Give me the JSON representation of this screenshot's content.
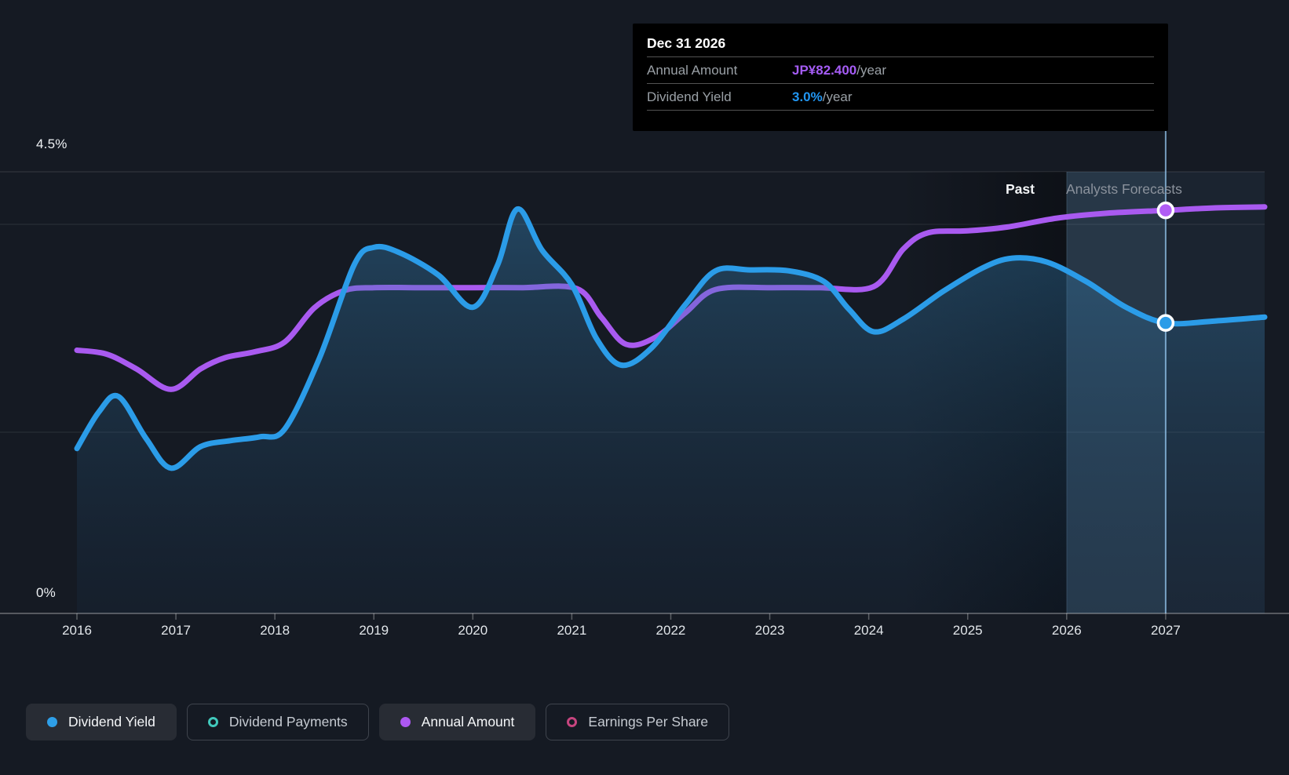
{
  "page": {
    "background": "#151a23"
  },
  "tooltip": {
    "title": "Dec 31 2026",
    "rows": [
      {
        "label": "Annual Amount",
        "value": "JP¥82.400",
        "suffix": "/year",
        "value_color": "#a55cf5"
      },
      {
        "label": "Dividend Yield",
        "value": "3.0%",
        "suffix": "/year",
        "value_color": "#2196f3"
      }
    ]
  },
  "labels": {
    "past": "Past",
    "analysts_forecasts": "Analysts Forecasts",
    "y_top": "4.5%",
    "y_bottom": "0%"
  },
  "axis": {
    "x_labels": [
      "2016",
      "2017",
      "2018",
      "2019",
      "2020",
      "2021",
      "2022",
      "2023",
      "2024",
      "2025",
      "2026",
      "2027"
    ]
  },
  "legend": {
    "items": [
      {
        "label": "Dividend Yield",
        "color": "#2e9fe8",
        "style": "filled",
        "active": true
      },
      {
        "label": "Dividend Payments",
        "color": "#41c9bc",
        "style": "ring",
        "active": false
      },
      {
        "label": "Annual Amount",
        "color": "#ad58f2",
        "style": "filled",
        "active": true
      },
      {
        "label": "Earnings Per Share",
        "color": "#c7457f",
        "style": "ring",
        "active": false
      }
    ]
  },
  "chart_data": {
    "type": "line",
    "title": "Dividend history and forecast",
    "x_ticks": [
      2016,
      2017,
      2018,
      2019,
      2020,
      2021,
      2022,
      2023,
      2024,
      2025,
      2026,
      2027
    ],
    "x_range": [
      2016,
      2028
    ],
    "forecast_start": 2026,
    "hover_x": 2027,
    "grid": true,
    "y_axis_yield": {
      "min": 0,
      "max": 4.5,
      "top_label": "4.5%",
      "bottom_label": "0%",
      "unit": "%"
    },
    "y_axis_amount": {
      "unit": "JP¥/year",
      "note": "hidden scale, calibrated to 82.400 at hover point"
    },
    "highlight": {
      "date": "Dec 31 2026",
      "annual_amount": "JP¥82.400/year",
      "dividend_yield": "3.0%/year"
    },
    "series": [
      {
        "name": "Dividend Yield",
        "unit": "%",
        "color": "#2b9ce8",
        "area": true,
        "points": [
          [
            2016.0,
            1.68
          ],
          [
            2016.22,
            2.05
          ],
          [
            2016.42,
            2.21
          ],
          [
            2016.7,
            1.78
          ],
          [
            2016.95,
            1.48
          ],
          [
            2017.25,
            1.7
          ],
          [
            2017.55,
            1.76
          ],
          [
            2017.85,
            1.8
          ],
          [
            2018.1,
            1.88
          ],
          [
            2018.45,
            2.6
          ],
          [
            2018.8,
            3.55
          ],
          [
            2019.0,
            3.73
          ],
          [
            2019.25,
            3.68
          ],
          [
            2019.65,
            3.45
          ],
          [
            2020.0,
            3.12
          ],
          [
            2020.25,
            3.55
          ],
          [
            2020.45,
            4.12
          ],
          [
            2020.7,
            3.7
          ],
          [
            2021.0,
            3.35
          ],
          [
            2021.25,
            2.8
          ],
          [
            2021.5,
            2.53
          ],
          [
            2021.8,
            2.7
          ],
          [
            2022.15,
            3.15
          ],
          [
            2022.45,
            3.49
          ],
          [
            2022.8,
            3.5
          ],
          [
            2023.2,
            3.49
          ],
          [
            2023.55,
            3.38
          ],
          [
            2023.8,
            3.1
          ],
          [
            2024.05,
            2.87
          ],
          [
            2024.35,
            3.0
          ],
          [
            2024.75,
            3.28
          ],
          [
            2025.15,
            3.52
          ],
          [
            2025.45,
            3.62
          ],
          [
            2025.8,
            3.58
          ],
          [
            2026.2,
            3.38
          ],
          [
            2026.6,
            3.12
          ],
          [
            2027.0,
            2.96
          ],
          [
            2027.5,
            2.98
          ],
          [
            2028.0,
            3.02
          ]
        ]
      },
      {
        "name": "Annual Amount",
        "unit": "JP¥",
        "color": "#a95af0",
        "area": false,
        "points": [
          [
            2016.0,
            53.8
          ],
          [
            2016.3,
            53.0
          ],
          [
            2016.6,
            50.0
          ],
          [
            2016.95,
            45.8
          ],
          [
            2017.25,
            50.0
          ],
          [
            2017.5,
            52.3
          ],
          [
            2017.8,
            53.5
          ],
          [
            2018.1,
            55.5
          ],
          [
            2018.4,
            62.5
          ],
          [
            2018.7,
            66.0
          ],
          [
            2019.0,
            66.6
          ],
          [
            2019.5,
            66.6
          ],
          [
            2020.0,
            66.6
          ],
          [
            2020.5,
            66.6
          ],
          [
            2021.05,
            66.4
          ],
          [
            2021.3,
            60.5
          ],
          [
            2021.55,
            55.0
          ],
          [
            2021.85,
            56.5
          ],
          [
            2022.15,
            61.5
          ],
          [
            2022.45,
            66.2
          ],
          [
            2023.0,
            66.6
          ],
          [
            2023.5,
            66.6
          ],
          [
            2024.05,
            66.8
          ],
          [
            2024.35,
            74.5
          ],
          [
            2024.6,
            77.8
          ],
          [
            2025.0,
            78.2
          ],
          [
            2025.4,
            79.0
          ],
          [
            2025.9,
            80.8
          ],
          [
            2026.4,
            81.8
          ],
          [
            2027.0,
            82.4
          ],
          [
            2027.5,
            82.9
          ],
          [
            2028.0,
            83.1
          ]
        ]
      }
    ]
  }
}
